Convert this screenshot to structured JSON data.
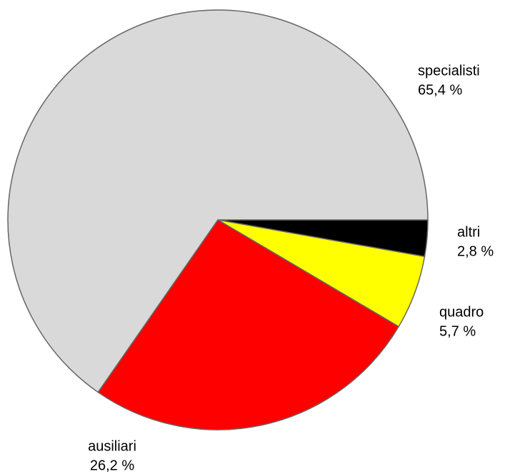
{
  "chart_data": {
    "type": "pie",
    "categories": [
      "altri",
      "quadro",
      "ausiliari",
      "specialisti"
    ],
    "values": [
      2.8,
      5.7,
      26.2,
      65.4
    ],
    "value_labels": [
      "2,8 %",
      "5,7 %",
      "26,2 %",
      "65,4 %"
    ],
    "colors": [
      "#000000",
      "#ffff00",
      "#ff0000",
      "#d9d9d9"
    ]
  }
}
